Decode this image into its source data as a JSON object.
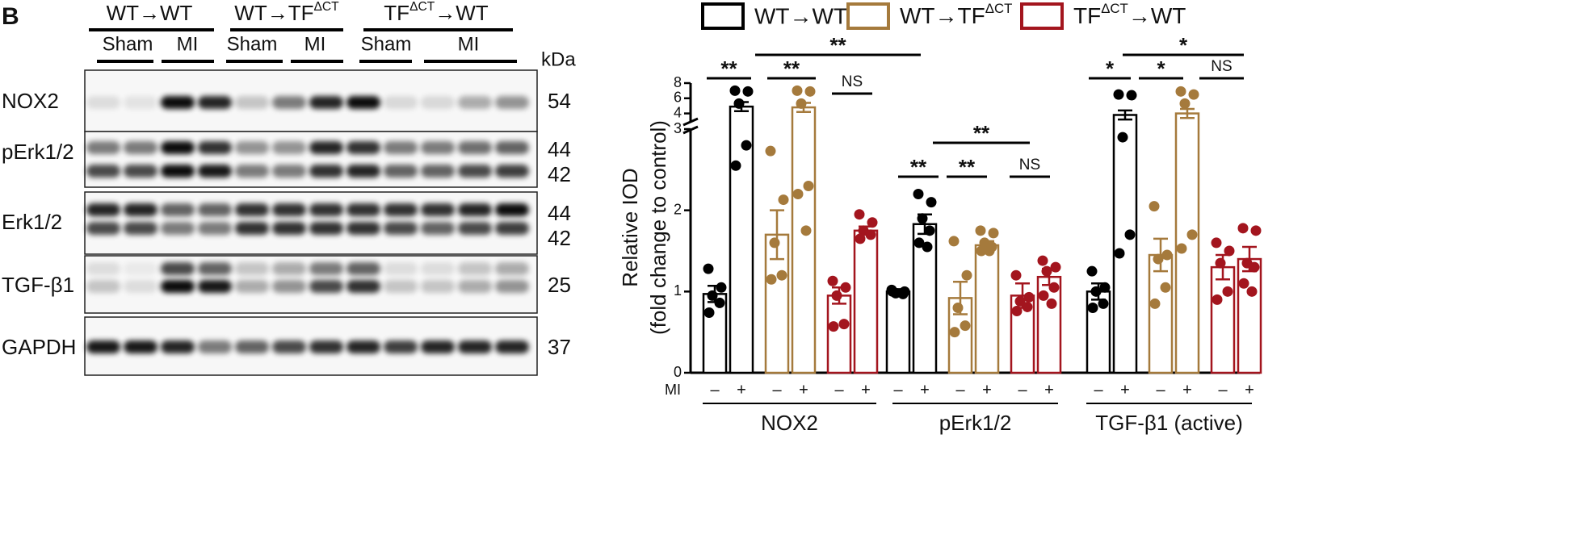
{
  "figure_label": "B",
  "superscript": "ΔCT",
  "blot": {
    "groups": [
      "WT→WT",
      "WT→TFΔCT",
      "TFΔCT→WT"
    ],
    "conditions": [
      "Sham",
      "MI",
      "Sham",
      "MI",
      "Sham",
      "MI"
    ],
    "unit": "kDa",
    "rows": [
      {
        "label": "NOX2",
        "kda": [
          54
        ]
      },
      {
        "label": "pErk1/2",
        "kda": [
          44,
          42
        ]
      },
      {
        "label": "Erk1/2",
        "kda": [
          44,
          42
        ]
      },
      {
        "label": "TGF-β1",
        "kda": [
          25
        ]
      },
      {
        "label": "GAPDH",
        "kda": [
          37
        ]
      }
    ]
  },
  "chart_data": {
    "type": "bar",
    "ylabel": [
      "Relative IOD",
      "(fold change to control)"
    ],
    "groups": [
      "NOX2",
      "pErk1/2",
      "TGF-β1 (active)"
    ],
    "mi_label": "MI",
    "mi_states": [
      "–",
      "+"
    ],
    "ylim": [
      0,
      8
    ],
    "axis_break": 3,
    "yticks": [
      0,
      1,
      2,
      3,
      4,
      6,
      8
    ],
    "series": [
      {
        "name": "WT→WT",
        "color": "#000000",
        "values": [
          0.97,
          4.9,
          1.0,
          1.83,
          1.0,
          3.8
        ],
        "errors": [
          0.1,
          0.6,
          0.03,
          0.12,
          0.1,
          0.6
        ],
        "points": [
          [
            1.28,
            1.05,
            0.95,
            0.86,
            0.74
          ],
          [
            7.0,
            6.9,
            5.3,
            2.8,
            2.55
          ],
          [
            1.02,
            1.0,
            0.98,
            0.97,
            1.0
          ],
          [
            2.2,
            2.1,
            1.9,
            1.75,
            1.6,
            1.55
          ],
          [
            1.25,
            1.05,
            1.0,
            0.85,
            0.8
          ],
          [
            6.5,
            6.4,
            2.9,
            1.7,
            1.47
          ]
        ]
      },
      {
        "name": "WT→TFΔCT",
        "color": "#a57a3c",
        "values": [
          1.7,
          4.8,
          0.92,
          1.57,
          1.45,
          4.0
        ],
        "errors": [
          0.3,
          0.6,
          0.2,
          0.05,
          0.2,
          0.6
        ],
        "points": [
          [
            2.73,
            2.13,
            1.6,
            1.2,
            1.15
          ],
          [
            7.0,
            6.9,
            5.3,
            2.3,
            2.2,
            1.75
          ],
          [
            1.62,
            1.2,
            0.8,
            0.58,
            0.5
          ],
          [
            1.75,
            1.72,
            1.6,
            1.55,
            1.5,
            1.5
          ],
          [
            2.05,
            1.45,
            1.4,
            1.05,
            0.85
          ],
          [
            6.9,
            6.5,
            5.3,
            1.7,
            1.53
          ]
        ]
      },
      {
        "name": "TFΔCT→WT",
        "color": "#a3151e",
        "values": [
          0.95,
          1.75,
          0.95,
          1.18,
          1.3,
          1.4
        ],
        "errors": [
          0.1,
          0.05,
          0.15,
          0.1,
          0.15,
          0.15
        ],
        "points": [
          [
            1.13,
            1.05,
            0.95,
            0.6,
            0.57
          ],
          [
            1.95,
            1.85,
            1.75,
            1.7,
            1.65
          ],
          [
            1.2,
            0.93,
            0.88,
            0.81,
            0.76
          ],
          [
            1.38,
            1.3,
            1.25,
            1.05,
            0.95,
            0.85
          ],
          [
            1.6,
            1.5,
            1.35,
            1.0,
            0.9
          ],
          [
            1.78,
            1.75,
            1.35,
            1.3,
            1.1,
            1.0
          ]
        ]
      }
    ],
    "significance": [
      "**",
      "**",
      "NS",
      "**",
      "**",
      "**",
      "NS",
      "**",
      "*",
      "*",
      "NS",
      "*"
    ]
  }
}
